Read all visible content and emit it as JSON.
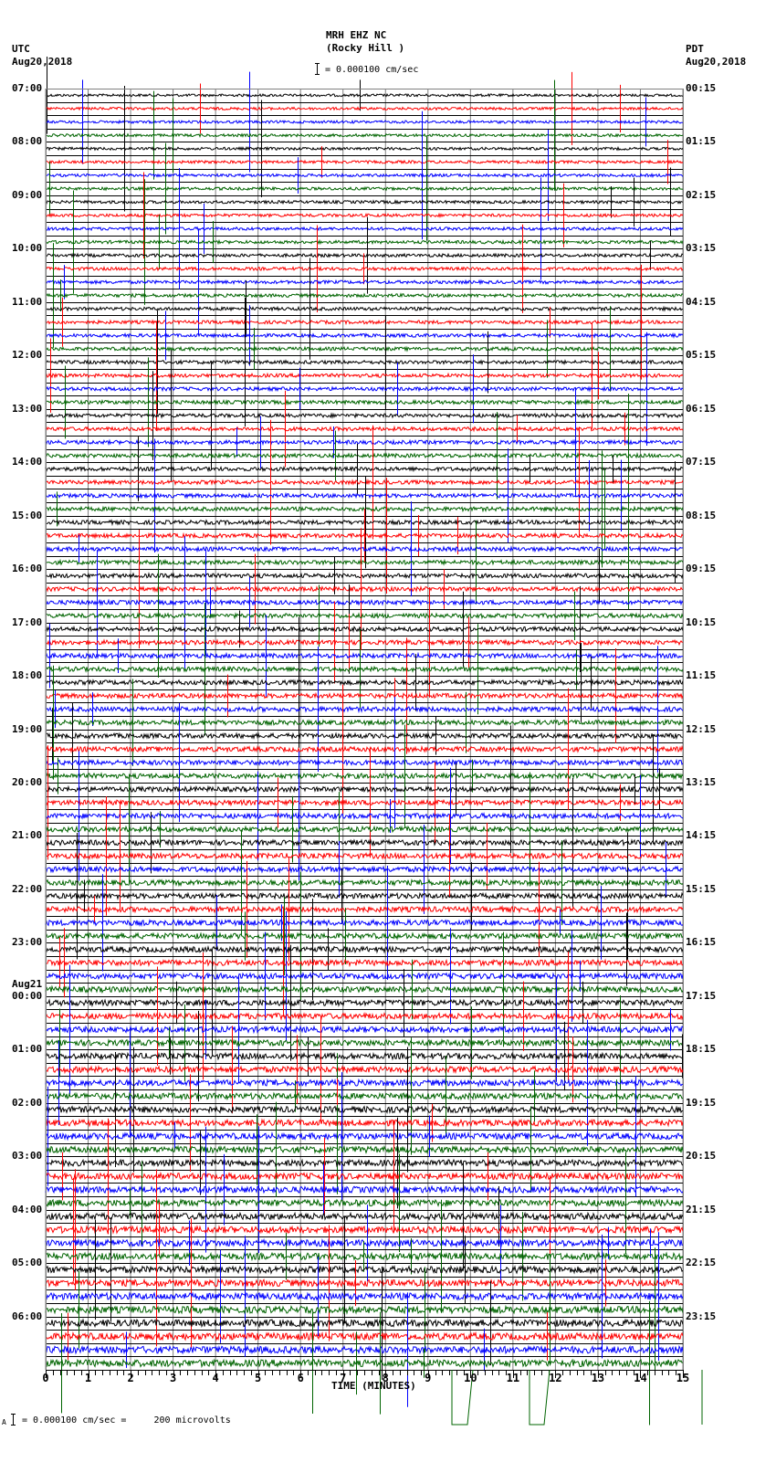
{
  "header": {
    "station": "MRH EHZ NC",
    "location": "(Rocky Hill )",
    "scale_text": "= 0.000100 cm/sec",
    "left_tz": "UTC",
    "left_date": "Aug20,2018",
    "right_tz": "PDT",
    "right_date": "Aug20,2018"
  },
  "footer": {
    "scale_prefix": "A",
    "scale_text": "= 0.000100 cm/sec =     200 microvolts"
  },
  "colors": {
    "trace_cycle": [
      "#000000",
      "#ff0000",
      "#0000ff",
      "#006400"
    ],
    "grid_major": "#000000",
    "grid_minor": "#808080"
  },
  "chart_data": {
    "type": "line",
    "title": "MRH EHZ NC (Rocky Hill )",
    "subtitle": "= 0.000100 cm/sec",
    "xlabel": "TIME (MINUTES)",
    "ylabel": "",
    "xlim": [
      0,
      15
    ],
    "x_ticks": [
      "0",
      "1",
      "2",
      "3",
      "4",
      "5",
      "6",
      "7",
      "8",
      "9",
      "10",
      "11",
      "12",
      "13",
      "14",
      "15"
    ],
    "traces_per_hour": 4,
    "minutes_per_trace": 15,
    "grid": true,
    "left_axis_labels": [
      {
        "text": "07:00"
      },
      {
        "text": "08:00"
      },
      {
        "text": "09:00"
      },
      {
        "text": "10:00"
      },
      {
        "text": "11:00"
      },
      {
        "text": "12:00"
      },
      {
        "text": "13:00"
      },
      {
        "text": "14:00"
      },
      {
        "text": "15:00"
      },
      {
        "text": "16:00"
      },
      {
        "text": "17:00"
      },
      {
        "text": "18:00"
      },
      {
        "text": "19:00"
      },
      {
        "text": "20:00"
      },
      {
        "text": "21:00"
      },
      {
        "text": "22:00"
      },
      {
        "text": "23:00"
      },
      {
        "text": "00:00",
        "date": "Aug21"
      },
      {
        "text": "01:00"
      },
      {
        "text": "02:00"
      },
      {
        "text": "03:00"
      },
      {
        "text": "04:00"
      },
      {
        "text": "05:00"
      },
      {
        "text": "06:00"
      }
    ],
    "right_axis_labels": [
      "00:15",
      "01:15",
      "02:15",
      "03:15",
      "04:15",
      "05:15",
      "06:15",
      "07:15",
      "08:15",
      "09:15",
      "10:15",
      "11:15",
      "12:15",
      "13:15",
      "14:15",
      "15:15",
      "16:15",
      "17:15",
      "18:15",
      "19:15",
      "20:15",
      "21:15",
      "22:15",
      "23:15"
    ],
    "scale": "0.000100 cm/sec = 200 microvolts"
  }
}
